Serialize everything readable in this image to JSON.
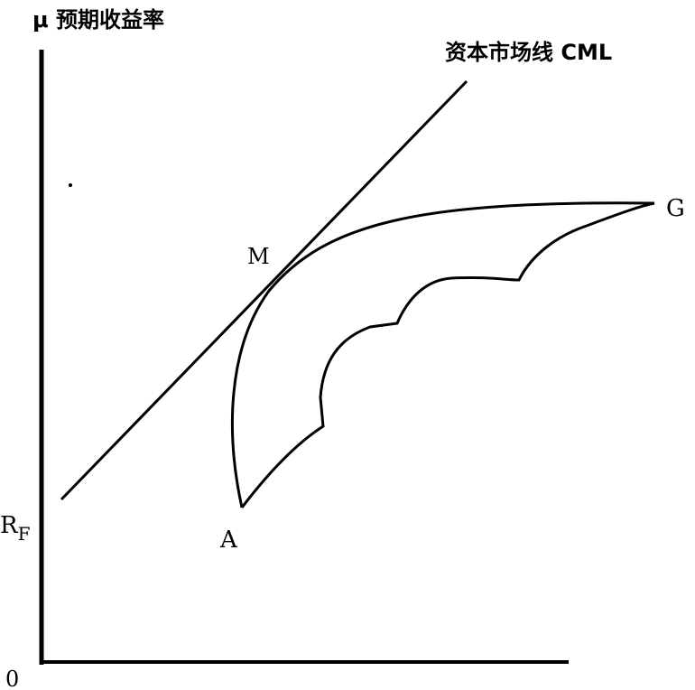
{
  "labels": {
    "y_axis": "μ 预期收益率",
    "cml": "资本市场线 CML",
    "portfolio_g": "G",
    "portfolio_m": "M",
    "portfolio_a": "A",
    "risk_free": {
      "symbol": "R",
      "subscript": "F"
    },
    "origin": "0"
  }
}
